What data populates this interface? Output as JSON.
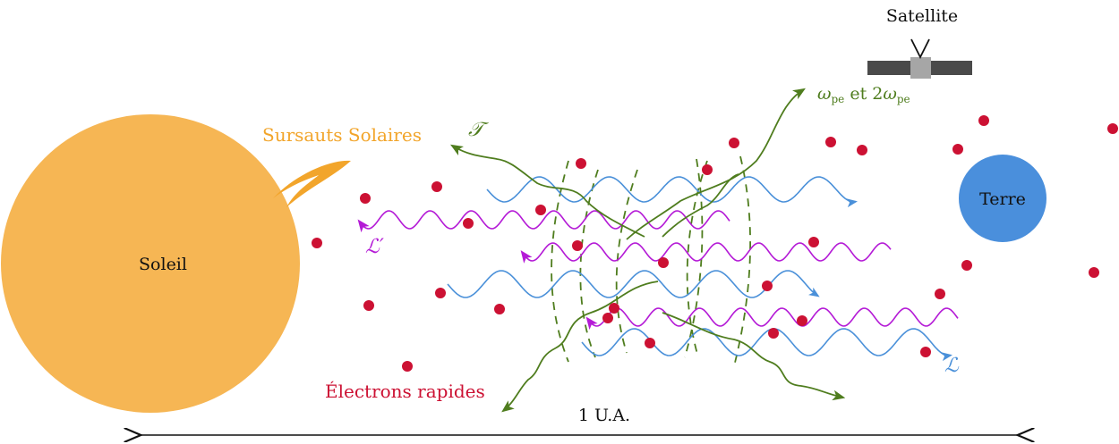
{
  "labels": {
    "sun": "Soleil",
    "earth": "Terre",
    "satellite": "Satellite",
    "bursts": "Sursauts Solaires",
    "electrons": "Électrons rapides",
    "distance": "1 U.A.",
    "wave_L": "ℒ",
    "wave_L_prime": "ℒ′",
    "wave_T": "𝒯",
    "omega": "ω",
    "omega_sub": "pe",
    "omega_and": " et 2",
    "omega2": "ω",
    "omega2_sub": "pe"
  },
  "colors": {
    "sun": "#f6b654",
    "burst": "#f2a52b",
    "earth": "#4a8fdc",
    "electron": "#cc1133",
    "wave_L": "#4a90d9",
    "wave_L_prime": "#b41ad6",
    "wave_T": "#4f7d1e",
    "satellite_panel": "#4a4a4a",
    "satellite_body": "#a6a6a6",
    "text": "#111111"
  }
}
